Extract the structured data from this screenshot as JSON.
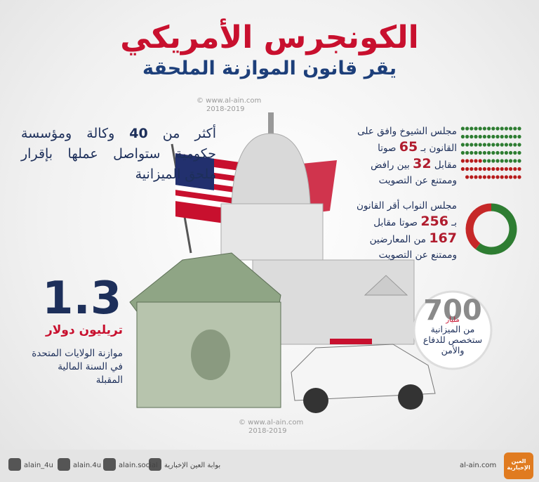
{
  "header": {
    "title": "الكونجرس الأمريكي",
    "subtitle": "يقر قانون الموازنة الملحقة"
  },
  "watermark": {
    "site": "© www.al-ain.com",
    "years": "2018-2019"
  },
  "agencies": {
    "before": "أكثر من",
    "count": 40,
    "after": "وكالة ومؤسسة حكومية ستواصل عملها بإقرار ملحق الميزانية"
  },
  "budget": {
    "amount": 1.3,
    "unit": "تريليون دولار",
    "note": "موازنة الولايات المتحدة في السنة المالية المقبلة"
  },
  "senate": {
    "lead": "مجلس الشيوخ وافق على القانون بـ",
    "yes": 65,
    "yes_unit": "صوتا",
    "against": "مقابل",
    "no": 32,
    "tail": "بين رافض وممتنع عن التصويت"
  },
  "house": {
    "lead": "مجلس النواب أقر القانون بـ",
    "yes": 256,
    "yes_unit": "صوتا",
    "against": "مقابل",
    "no": 167,
    "tail": "من المعارضين وممتنع عن التصويت"
  },
  "defense": {
    "amount": 700,
    "unit": "مليار",
    "text": "من الميزانية ستخصص للدفاع والأمن"
  },
  "footer": {
    "twitter": "alain_4u",
    "instagram": "alain.4u",
    "facebook": "alain.social",
    "youtube": "بوابة العين الإخبارية",
    "site": "al-ain.com",
    "logo": "العين الإخبارية"
  }
}
